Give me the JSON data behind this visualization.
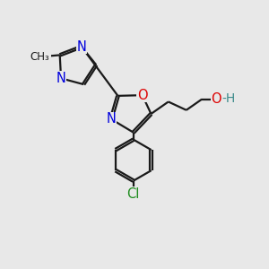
{
  "background_color": "#e8e8e8",
  "bond_color": "#1a1a1a",
  "bond_width": 1.6,
  "atom_colors": {
    "N": "#0000dd",
    "O": "#dd0000",
    "Cl": "#1a8a1a",
    "H": "#3a8a8a",
    "C": "#1a1a1a"
  },
  "font_size_atom": 10.5
}
